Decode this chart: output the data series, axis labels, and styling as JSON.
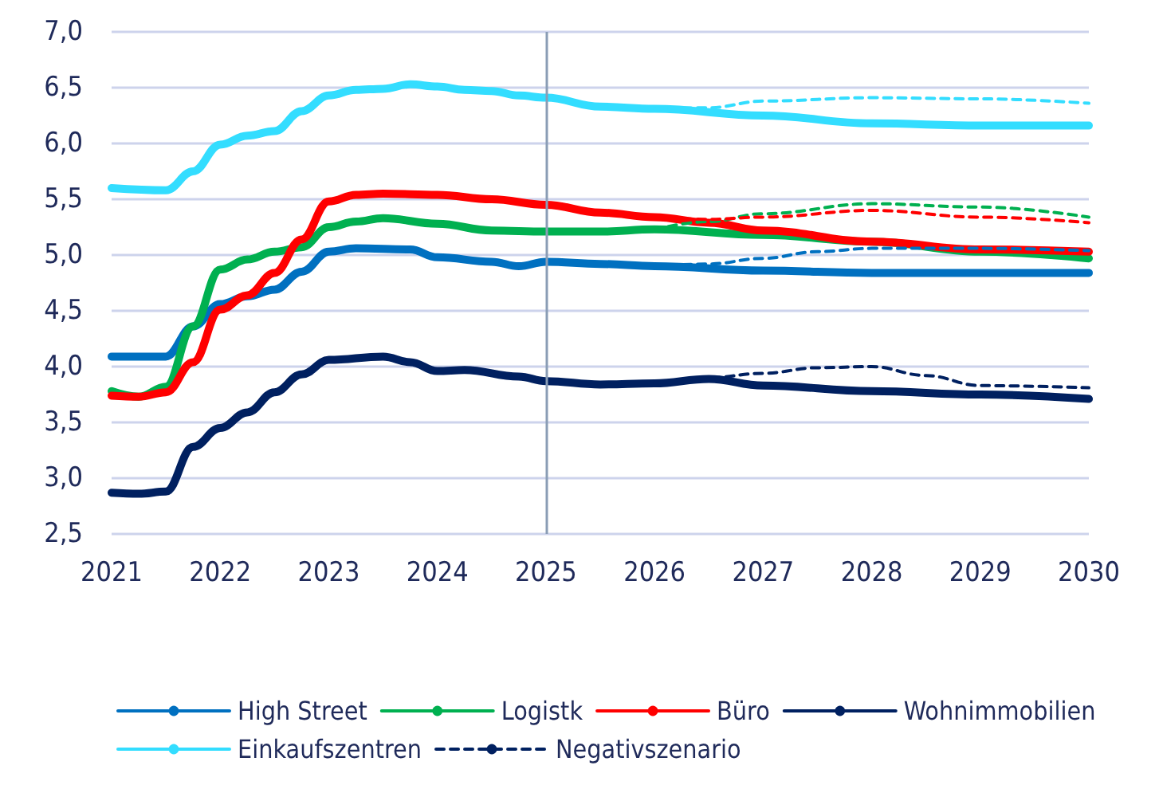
{
  "chart_data": {
    "type": "line",
    "xlim": [
      2021,
      2030
    ],
    "xticks": [
      2021,
      2022,
      2023,
      2024,
      2025,
      2026,
      2027,
      2028,
      2029,
      2030
    ],
    "ylim": [
      2.5,
      7.0
    ],
    "yticks": [
      {
        "value": 2.5,
        "label": "2,5"
      },
      {
        "value": 3.0,
        "label": "3,0"
      },
      {
        "value": 3.5,
        "label": "3,5"
      },
      {
        "value": 4.0,
        "label": "4,0"
      },
      {
        "value": 4.5,
        "label": "4,5"
      },
      {
        "value": 5.0,
        "label": "5,0"
      },
      {
        "value": 5.5,
        "label": "5,5"
      },
      {
        "value": 6.0,
        "label": "6,0"
      },
      {
        "value": 6.5,
        "label": "6,5"
      },
      {
        "value": 7.0,
        "label": "7,0"
      }
    ],
    "grid": "y",
    "legend": "bottom",
    "marker": "none",
    "ref_lines": [
      {
        "axis": "x",
        "value": 2025,
        "color": "#8a9db5"
      }
    ],
    "series": [
      {
        "name": "High Street",
        "color": "#0070c0",
        "line_style": "solid",
        "x": [
          2021,
          2021.5,
          2021.75,
          2022,
          2022.25,
          2022.5,
          2022.75,
          2023,
          2023.25,
          2023.75,
          2024,
          2024.5,
          2024.75,
          2025,
          2025.5,
          2026,
          2027,
          2028,
          2029,
          2030
        ],
        "values": [
          4.09,
          4.09,
          4.36,
          4.56,
          4.63,
          4.69,
          4.85,
          5.03,
          5.06,
          5.05,
          4.98,
          4.94,
          4.9,
          4.94,
          4.92,
          4.9,
          4.86,
          4.84,
          4.84,
          4.84
        ]
      },
      {
        "name": "Logistk",
        "color": "#00b050",
        "line_style": "solid",
        "x": [
          2021,
          2021.25,
          2021.5,
          2021.75,
          2022,
          2022.25,
          2022.5,
          2022.75,
          2023,
          2023.25,
          2023.5,
          2024,
          2024.5,
          2025,
          2025.5,
          2026,
          2027,
          2028,
          2029,
          2030
        ],
        "values": [
          3.78,
          3.73,
          3.82,
          4.36,
          4.87,
          4.96,
          5.03,
          5.07,
          5.25,
          5.3,
          5.33,
          5.28,
          5.22,
          5.21,
          5.21,
          5.23,
          5.18,
          5.12,
          5.03,
          4.97
        ]
      },
      {
        "name": "Büro",
        "color": "#ff0000",
        "line_style": "solid",
        "x": [
          2021,
          2021.25,
          2021.5,
          2021.75,
          2022,
          2022.25,
          2022.5,
          2022.75,
          2023,
          2023.25,
          2023.5,
          2024,
          2024.5,
          2025,
          2025.5,
          2026,
          2026.5,
          2027,
          2028,
          2029,
          2030
        ],
        "values": [
          3.74,
          3.73,
          3.77,
          4.04,
          4.51,
          4.64,
          4.84,
          5.14,
          5.48,
          5.54,
          5.55,
          5.54,
          5.5,
          5.45,
          5.38,
          5.34,
          5.29,
          5.22,
          5.12,
          5.05,
          5.03
        ]
      },
      {
        "name": "Wohnimmobilien",
        "color": "#002060",
        "line_style": "solid",
        "x": [
          2021,
          2021.25,
          2021.5,
          2021.75,
          2022,
          2022.25,
          2022.5,
          2022.75,
          2023,
          2023.5,
          2023.75,
          2024,
          2024.25,
          2024.75,
          2025,
          2025.5,
          2026,
          2026.5,
          2027,
          2028,
          2029,
          2030
        ],
        "values": [
          2.87,
          2.86,
          2.88,
          3.28,
          3.45,
          3.59,
          3.77,
          3.93,
          4.06,
          4.09,
          4.04,
          3.96,
          3.97,
          3.91,
          3.87,
          3.84,
          3.85,
          3.89,
          3.83,
          3.78,
          3.75,
          3.71
        ]
      },
      {
        "name": "Einkaufszentren",
        "color": "#33ddff",
        "line_style": "solid",
        "x": [
          2021,
          2021.5,
          2021.75,
          2022,
          2022.25,
          2022.5,
          2022.75,
          2023,
          2023.25,
          2023.5,
          2023.75,
          2024,
          2024.25,
          2024.5,
          2024.75,
          2025,
          2025.5,
          2026,
          2027,
          2028,
          2029,
          2030
        ],
        "values": [
          5.6,
          5.58,
          5.75,
          5.99,
          6.07,
          6.11,
          6.29,
          6.43,
          6.48,
          6.49,
          6.53,
          6.51,
          6.48,
          6.47,
          6.43,
          6.41,
          6.33,
          6.31,
          6.25,
          6.18,
          6.16,
          6.16
        ]
      },
      {
        "name": "Negativszenario",
        "color": "#002060",
        "line_style": "dashed",
        "x": [
          2026,
          2026.5,
          2027,
          2027.5,
          2028,
          2028.5,
          2029,
          2030
        ],
        "values": [
          3.85,
          3.9,
          3.94,
          3.99,
          4.0,
          3.92,
          3.83,
          3.81
        ]
      },
      {
        "color": "#0070c0",
        "line_style": "dashed",
        "x": [
          2026,
          2026.5,
          2027,
          2027.5,
          2028,
          2029,
          2030
        ],
        "values": [
          4.9,
          4.92,
          4.97,
          5.03,
          5.06,
          5.06,
          5.04
        ]
      },
      {
        "color": "#00b050",
        "line_style": "dashed",
        "x": [
          2026,
          2026.5,
          2027,
          2028,
          2029,
          2030
        ],
        "values": [
          5.23,
          5.3,
          5.37,
          5.46,
          5.43,
          5.34
        ]
      },
      {
        "color": "#ff0000",
        "line_style": "dashed",
        "x": [
          2026,
          2026.5,
          2027,
          2028,
          2029,
          2030
        ],
        "values": [
          5.34,
          5.32,
          5.34,
          5.4,
          5.34,
          5.29
        ]
      },
      {
        "color": "#33ddff",
        "line_style": "dashed",
        "x": [
          2026,
          2026.5,
          2027,
          2028,
          2029,
          2030
        ],
        "values": [
          6.31,
          6.32,
          6.38,
          6.41,
          6.4,
          6.36
        ]
      }
    ]
  }
}
